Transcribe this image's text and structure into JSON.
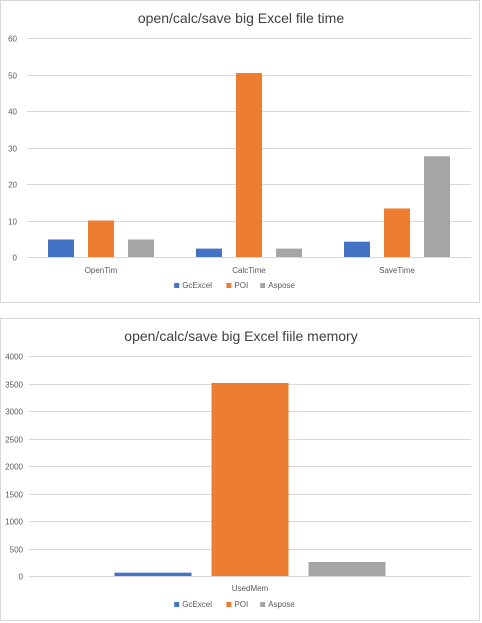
{
  "chart_data": [
    {
      "type": "bar",
      "title": "open/calc/save big Excel file time",
      "categories": [
        "OpenTim",
        "CalcTime",
        "SaveTime"
      ],
      "series": [
        {
          "name": "GcExcel",
          "color": "#4472c4",
          "values": [
            4.8,
            2.3,
            4.2
          ]
        },
        {
          "name": "POI",
          "color": "#ed7d31",
          "values": [
            10.0,
            50.4,
            13.3
          ]
        },
        {
          "name": "Aspose",
          "color": "#a5a5a5",
          "values": [
            4.8,
            2.3,
            27.6
          ]
        }
      ],
      "ylim": [
        0,
        60
      ],
      "yticks": [
        0,
        10,
        20,
        30,
        40,
        50,
        60
      ],
      "grid": true,
      "legend": "bottom"
    },
    {
      "type": "bar",
      "title": "open/calc/save big Excel fiile memory",
      "categories": [
        "UsedMem"
      ],
      "series": [
        {
          "name": "GcExcel",
          "color": "#4472c4",
          "values": [
            60
          ]
        },
        {
          "name": "POI",
          "color": "#ed7d31",
          "values": [
            3510
          ]
        },
        {
          "name": "Aspose",
          "color": "#a5a5a5",
          "values": [
            255
          ]
        }
      ],
      "ylim": [
        0,
        4000
      ],
      "yticks": [
        0,
        500,
        1000,
        1500,
        2000,
        2500,
        3000,
        3500,
        4000
      ],
      "grid": true,
      "legend": "bottom"
    }
  ]
}
